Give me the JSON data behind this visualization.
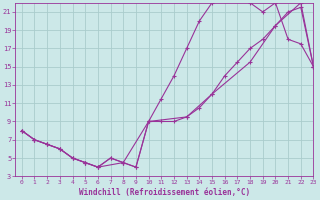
{
  "bg_color": "#cce8e8",
  "grid_color": "#aacccc",
  "line_color": "#993399",
  "marker_color": "#993399",
  "xlabel": "Windchill (Refroidissement éolien,°C)",
  "xlabel_color": "#993399",
  "tick_color": "#993399",
  "line1_x": [
    0,
    1,
    2,
    3,
    4,
    5,
    6,
    7,
    8,
    9,
    10,
    11,
    12,
    13,
    14,
    15,
    16,
    17,
    18,
    19,
    20,
    21,
    22,
    23
  ],
  "line1_y": [
    8,
    7,
    6.5,
    6,
    5,
    4.5,
    4,
    5,
    4.5,
    4,
    9,
    11.5,
    14,
    17,
    20,
    22,
    22.5,
    22.5,
    22,
    21,
    22,
    18,
    17.5,
    15
  ],
  "line2_x": [
    0,
    1,
    2,
    3,
    4,
    5,
    6,
    7,
    8,
    9,
    10,
    11,
    12,
    13,
    14,
    15,
    16,
    17,
    18,
    19,
    20,
    21,
    22,
    23
  ],
  "line2_y": [
    8,
    7,
    6.5,
    6,
    5,
    4.5,
    4,
    5,
    4.5,
    4,
    9,
    9,
    9,
    9.5,
    10.5,
    12,
    14,
    15.5,
    17,
    18,
    19.5,
    21,
    21.5,
    15
  ],
  "line3_x": [
    0,
    1,
    2,
    3,
    4,
    5,
    6,
    8,
    10,
    13,
    15,
    18,
    20,
    22,
    23
  ],
  "line3_y": [
    8,
    7,
    6.5,
    6,
    5,
    4.5,
    4,
    4.5,
    9,
    9.5,
    12,
    15.5,
    19.5,
    22,
    15
  ],
  "xlim": [
    -0.5,
    23
  ],
  "ylim": [
    3,
    22
  ],
  "xticks": [
    0,
    1,
    2,
    3,
    4,
    5,
    6,
    7,
    8,
    9,
    10,
    11,
    12,
    13,
    14,
    15,
    16,
    17,
    18,
    19,
    20,
    21,
    22,
    23
  ],
  "yticks": [
    3,
    5,
    7,
    9,
    11,
    13,
    15,
    17,
    19,
    21
  ]
}
